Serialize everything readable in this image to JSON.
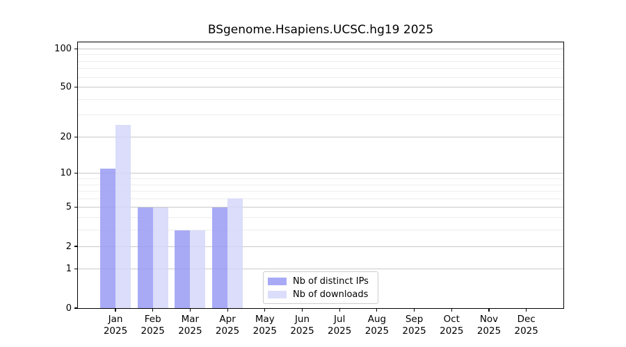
{
  "title": "BSgenome.Hsapiens.UCSC.hg19 2025",
  "chart_data": {
    "type": "bar",
    "title": "BSgenome.Hsapiens.UCSC.hg19 2025",
    "xlabel": "",
    "ylabel": "",
    "yscale": "log1p",
    "ylim": [
      0,
      112
    ],
    "grid": true,
    "legend_position": "lower-center-inside",
    "yticks": [
      0,
      1,
      2,
      5,
      10,
      20,
      50,
      100
    ],
    "yticklabels": [
      "0",
      "1",
      "2",
      "5",
      "10",
      "20",
      "50",
      "100"
    ],
    "yticks_minor": [
      3,
      4,
      6,
      7,
      8,
      9,
      30,
      40,
      60,
      70,
      80,
      90
    ],
    "categories": [
      "Jan 2025",
      "Feb 2025",
      "Mar 2025",
      "Apr 2025",
      "May 2025",
      "Jun 2025",
      "Jul 2025",
      "Aug 2025",
      "Sep 2025",
      "Oct 2025",
      "Nov 2025",
      "Dec 2025"
    ],
    "series": [
      {
        "name": "Nb of distinct IPs",
        "color": "rgba(153,155,244,0.85)",
        "color_hex_on_white": "#a8aaf6",
        "values": [
          11,
          5,
          3,
          5,
          0,
          0,
          0,
          0,
          0,
          0,
          0,
          0
        ]
      },
      {
        "name": "Nb of downloads",
        "color": "rgba(213,215,249,0.85)",
        "color_hex_on_white": "#dbddfa",
        "values": [
          25,
          5,
          3,
          6,
          0,
          0,
          0,
          0,
          0,
          0,
          0,
          0
        ]
      }
    ]
  },
  "legend": {
    "items": [
      {
        "label": "Nb of distinct IPs"
      },
      {
        "label": "Nb of downloads"
      }
    ]
  },
  "colors": {
    "ips_bar": "#a8aaf6",
    "downloads_bar": "#dbddfa",
    "grid_major": "#c8c8c8",
    "grid_minor": "#ededed",
    "spine": "#000000",
    "background": "#ffffff"
  }
}
